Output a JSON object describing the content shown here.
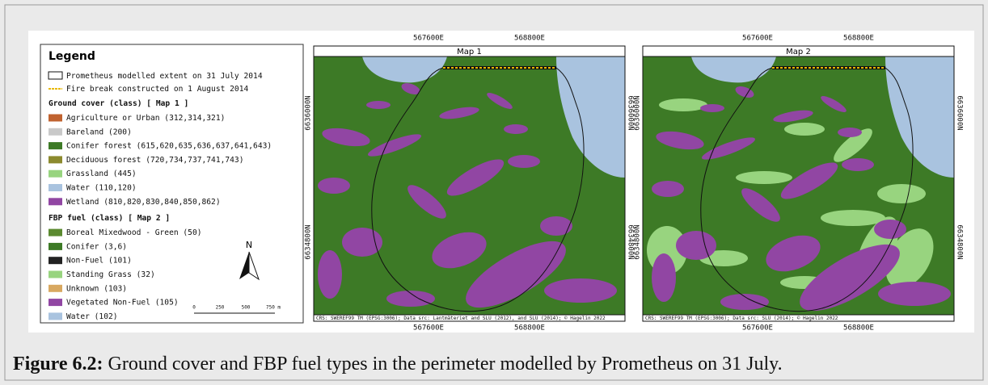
{
  "legend": {
    "title": "Legend",
    "extent": "Prometheus modelled extent on 31 July 2014",
    "fire_break": "Fire break constructed on 1 August 2014",
    "groups": [
      {
        "heading": "Ground cover (class) [ Map 1 ]",
        "items": [
          {
            "label": "Agriculture or Urban (312,314,321)",
            "color": "#c0622f"
          },
          {
            "label": "Bareland (200)",
            "color": "#c9c9c9"
          },
          {
            "label": "Conifer forest (615,620,635,636,637,641,643)",
            "color": "#3d7a26"
          },
          {
            "label": "Deciduous forest (720,734,737,741,743)",
            "color": "#8c8a2e"
          },
          {
            "label": "Grassland (445)",
            "color": "#98d47f"
          },
          {
            "label": "Water (110,120)",
            "color": "#a9c3df"
          },
          {
            "label": "Wetland (810,820,830,840,850,862)",
            "color": "#9146a3"
          }
        ]
      },
      {
        "heading": "FBP fuel (class) [ Map 2 ]",
        "items": [
          {
            "label": "Boreal Mixedwood - Green (50)",
            "color": "#5b8a30"
          },
          {
            "label": "Conifer (3,6)",
            "color": "#3d7a26"
          },
          {
            "label": "Non-Fuel (101)",
            "color": "#222222"
          },
          {
            "label": "Standing Grass (32)",
            "color": "#98d47f"
          },
          {
            "label": "Unknown (103)",
            "color": "#d8a860"
          },
          {
            "label": "Vegetated Non-Fuel (105)",
            "color": "#9146a3"
          },
          {
            "label": "Water (102)",
            "color": "#a9c3df"
          }
        ]
      }
    ],
    "north": "N",
    "scale": [
      "0",
      "250",
      "500",
      "750 m"
    ]
  },
  "maps": [
    {
      "title": "Map 1",
      "x_ticks": [
        "567600E",
        "568800E"
      ],
      "y_ticks": [
        "6636000N",
        "6634800N"
      ],
      "credit": "CRS: SWEREF99 TM (EPSG:3006); Data src: Lantmäteriet and SLU (2012), and SLU (2014); © Hagelin 2022"
    },
    {
      "title": "Map 2",
      "x_ticks": [
        "567600E",
        "568800E"
      ],
      "y_ticks": [
        "6636000N",
        "6634800N"
      ],
      "credit": "CRS: SWEREF99 TM (EPSG:3006); Data src: SLU (2014); © Hagelin 2022"
    }
  ],
  "caption": {
    "label": "Figure 6.2:",
    "text": " Ground cover and FBP fuel types in the perimeter modelled by Prometheus on 31 July."
  }
}
